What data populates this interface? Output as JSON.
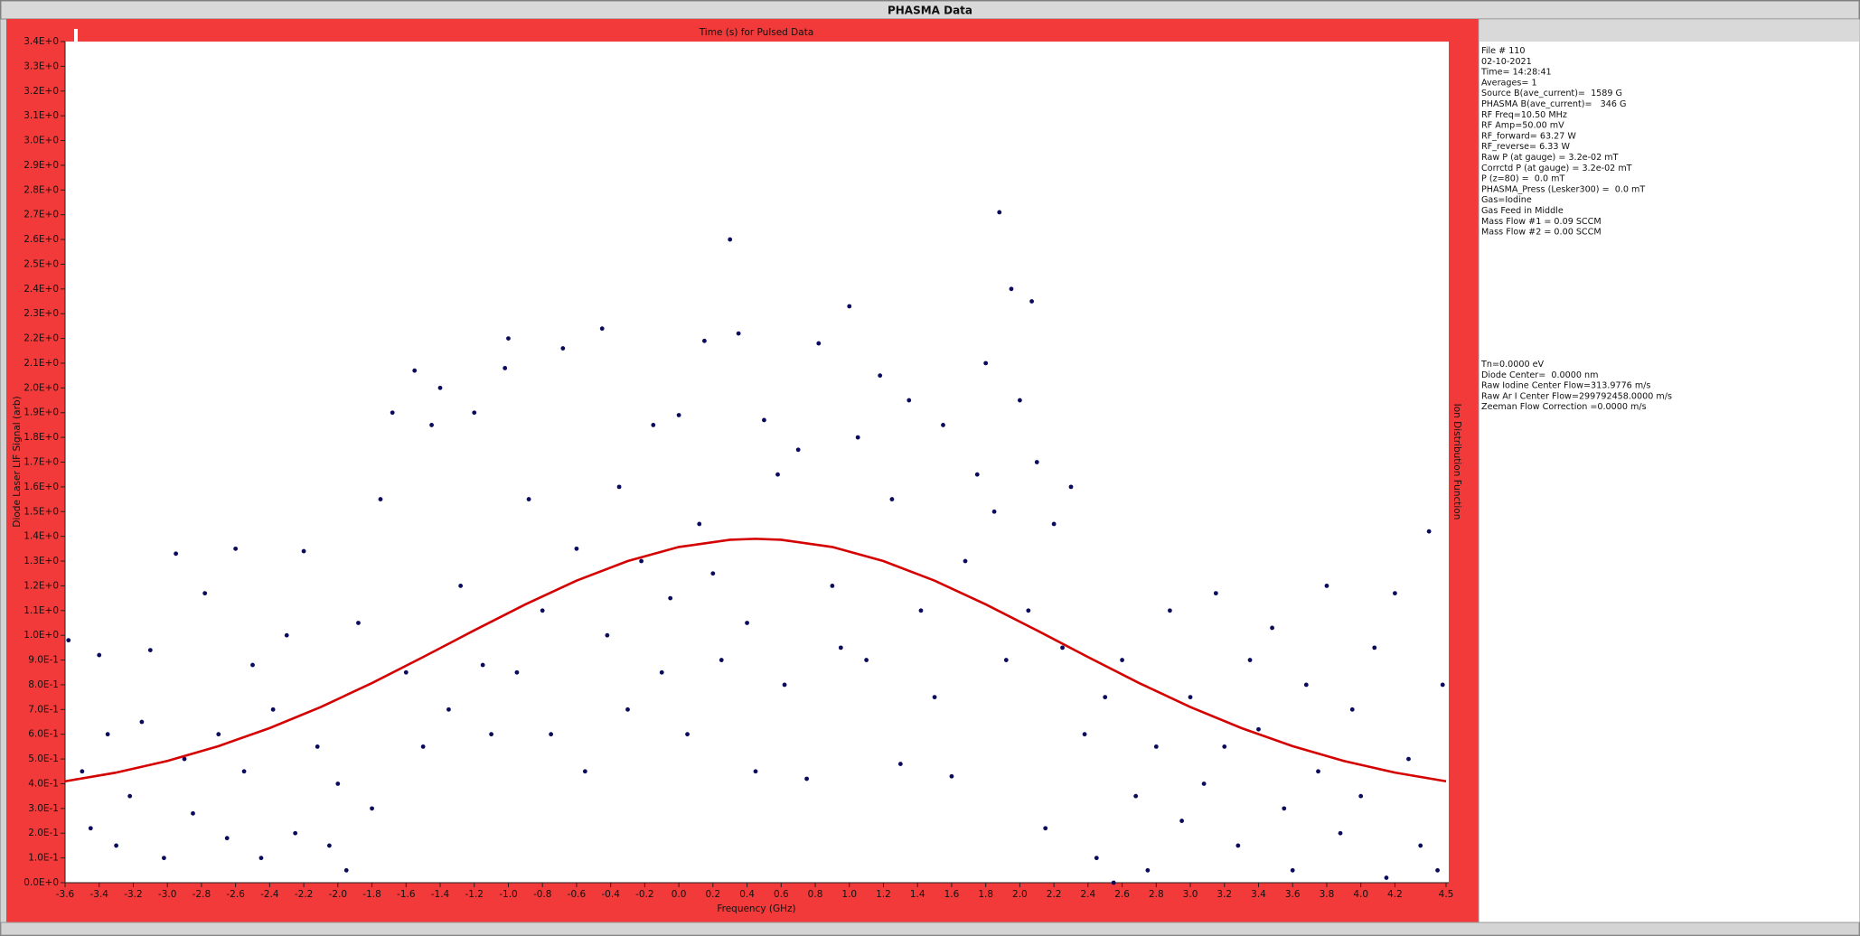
{
  "window_title": "PHASMA Data",
  "chart_data": {
    "type": "scatter",
    "title": "Time (s) for Pulsed Data",
    "x_label": "Frequency (GHz)",
    "y_label": "Diode Laser LIF Signal (arb)",
    "right_label": "Ion Distribution Function",
    "xlim": [
      -3.6,
      4.5
    ],
    "ylim": [
      0,
      3.4
    ],
    "xticks": [
      -3.6,
      -3.4,
      -3.2,
      {
        "value": -3,
        "label": "-3.0"
      },
      -2.8,
      -2.6,
      -2.4,
      -2.2,
      {
        "value": -2,
        "label": "-2.0"
      },
      -1.8,
      -1.6,
      -1.4,
      -1.2,
      {
        "value": -1,
        "label": "-1.0"
      },
      -0.8,
      -0.6,
      -0.4,
      -0.2,
      {
        "value": 0,
        "label": "0.0"
      },
      0.2,
      0.4,
      0.6,
      0.8,
      {
        "value": 1,
        "label": "1.0"
      },
      1.2,
      1.4,
      1.6,
      1.8,
      {
        "value": 2,
        "label": "2.0"
      },
      2.2,
      2.4,
      2.6,
      2.8,
      {
        "value": 3,
        "label": "3.0"
      },
      3.2,
      3.4,
      3.6,
      3.8,
      {
        "value": 4,
        "label": "4.0"
      },
      4.2,
      4.5
    ],
    "yticks": [
      {
        "value": 0,
        "label": "0.0E+0"
      },
      {
        "value": 0.1,
        "label": "1.0E-1"
      },
      {
        "value": 0.2,
        "label": "2.0E-1"
      },
      {
        "value": 0.3,
        "label": "3.0E-1"
      },
      {
        "value": 0.4,
        "label": "4.0E-1"
      },
      {
        "value": 0.5,
        "label": "5.0E-1"
      },
      {
        "value": 0.6,
        "label": "6.0E-1"
      },
      {
        "value": 0.7,
        "label": "7.0E-1"
      },
      {
        "value": 0.8,
        "label": "8.0E-1"
      },
      {
        "value": 0.9,
        "label": "9.0E-1"
      },
      {
        "value": 1.0,
        "label": "1.0E+0"
      },
      {
        "value": 1.1,
        "label": "1.1E+0"
      },
      {
        "value": 1.2,
        "label": "1.2E+0"
      },
      {
        "value": 1.3,
        "label": "1.3E+0"
      },
      {
        "value": 1.4,
        "label": "1.4E+0"
      },
      {
        "value": 1.5,
        "label": "1.5E+0"
      },
      {
        "value": 1.6,
        "label": "1.6E+0"
      },
      {
        "value": 1.7,
        "label": "1.7E+0"
      },
      {
        "value": 1.8,
        "label": "1.8E+0"
      },
      {
        "value": 1.9,
        "label": "1.9E+0"
      },
      {
        "value": 2.0,
        "label": "2.0E+0"
      },
      {
        "value": 2.1,
        "label": "2.1E+0"
      },
      {
        "value": 2.2,
        "label": "2.2E+0"
      },
      {
        "value": 2.3,
        "label": "2.3E+0"
      },
      {
        "value": 2.4,
        "label": "2.4E+0"
      },
      {
        "value": 2.5,
        "label": "2.5E+0"
      },
      {
        "value": 2.6,
        "label": "2.6E+0"
      },
      {
        "value": 2.7,
        "label": "2.7E+0"
      },
      {
        "value": 2.8,
        "label": "2.8E+0"
      },
      {
        "value": 2.9,
        "label": "2.9E+0"
      },
      {
        "value": 3.0,
        "label": "3.0E+0"
      },
      {
        "value": 3.1,
        "label": "3.1E+0"
      },
      {
        "value": 3.2,
        "label": "3.2E+0"
      },
      {
        "value": 3.3,
        "label": "3.3E+0"
      },
      {
        "value": 3.4,
        "label": "3.4E+0"
      }
    ],
    "points": {
      "color": "#0b0b5e",
      "x": [
        -3.58,
        -3.5,
        -3.45,
        -3.4,
        -3.35,
        -3.3,
        -3.22,
        -3.15,
        -3.1,
        -3.02,
        -2.95,
        -2.9,
        -2.85,
        -2.78,
        -2.7,
        -2.65,
        -2.6,
        -2.55,
        -2.5,
        -2.45,
        -2.38,
        -2.3,
        -2.25,
        -2.2,
        -2.12,
        -2.05,
        -2.0,
        -1.95,
        -1.88,
        -1.8,
        -1.75,
        -1.68,
        -1.6,
        -1.55,
        -1.5,
        -1.45,
        -1.4,
        -1.35,
        -1.28,
        -1.2,
        -1.15,
        -1.1,
        -1.02,
        -1.0,
        -0.95,
        -0.88,
        -0.8,
        -0.75,
        -0.68,
        -0.6,
        -0.55,
        -0.45,
        -0.42,
        -0.35,
        -0.3,
        -0.22,
        -0.15,
        -0.1,
        -0.05,
        0.0,
        0.05,
        0.12,
        0.15,
        0.2,
        0.25,
        0.3,
        0.35,
        0.4,
        0.45,
        0.5,
        0.58,
        0.62,
        0.7,
        0.75,
        0.82,
        0.9,
        0.95,
        1.0,
        1.05,
        1.1,
        1.18,
        1.25,
        1.3,
        1.35,
        1.42,
        1.5,
        1.55,
        1.6,
        1.68,
        1.75,
        1.8,
        1.85,
        1.88,
        1.92,
        1.95,
        2.0,
        2.05,
        2.07,
        2.1,
        2.15,
        2.2,
        2.25,
        2.3,
        2.38,
        2.45,
        2.5,
        2.55,
        2.6,
        2.68,
        2.75,
        2.8,
        2.88,
        2.95,
        3.0,
        3.08,
        3.15,
        3.2,
        3.28,
        3.35,
        3.4,
        3.48,
        3.55,
        3.6,
        3.68,
        3.75,
        3.8,
        3.88,
        3.95,
        4.0,
        4.08,
        4.15,
        4.2,
        4.28,
        4.35,
        4.4,
        4.45,
        4.48
      ],
      "y": [
        0.98,
        0.45,
        0.22,
        0.92,
        0.6,
        0.15,
        0.35,
        0.65,
        0.94,
        0.1,
        1.33,
        0.5,
        0.28,
        1.17,
        0.6,
        0.18,
        1.35,
        0.45,
        0.88,
        0.1,
        0.7,
        1.0,
        0.2,
        1.34,
        0.55,
        0.15,
        0.4,
        0.05,
        1.05,
        0.3,
        1.55,
        1.9,
        0.85,
        2.07,
        0.55,
        1.85,
        2.0,
        0.7,
        1.2,
        1.9,
        0.88,
        0.6,
        2.08,
        2.2,
        0.85,
        1.55,
        1.1,
        0.6,
        2.16,
        1.35,
        0.45,
        2.24,
        1.0,
        1.6,
        0.7,
        1.3,
        1.85,
        0.85,
        1.15,
        1.89,
        0.6,
        1.45,
        2.19,
        1.25,
        0.9,
        2.6,
        2.22,
        1.05,
        0.45,
        1.87,
        1.65,
        0.8,
        1.75,
        0.42,
        2.18,
        1.2,
        0.95,
        2.33,
        1.8,
        0.9,
        2.05,
        1.55,
        0.48,
        1.95,
        1.1,
        0.75,
        1.85,
        0.43,
        1.3,
        1.65,
        2.1,
        1.5,
        2.71,
        0.9,
        2.4,
        1.95,
        1.1,
        2.35,
        1.7,
        0.22,
        1.45,
        0.95,
        1.6,
        0.6,
        0.1,
        0.75,
        0.0,
        0.9,
        0.35,
        0.05,
        0.55,
        1.1,
        0.25,
        0.75,
        0.4,
        1.17,
        0.55,
        0.15,
        0.9,
        0.62,
        1.03,
        0.3,
        0.05,
        0.8,
        0.45,
        1.2,
        0.2,
        0.7,
        0.35,
        0.95,
        0.02,
        1.17,
        0.5,
        0.15,
        1.42,
        0.05,
        0.8
      ]
    },
    "fit": {
      "color": "#d40000",
      "x": [
        -3.6,
        -3.3,
        -3.0,
        -2.7,
        -2.4,
        -2.1,
        -1.8,
        -1.5,
        -1.2,
        -0.9,
        -0.6,
        -0.3,
        0.0,
        0.3,
        0.45,
        0.6,
        0.9,
        1.2,
        1.5,
        1.8,
        2.1,
        2.4,
        2.7,
        3.0,
        3.3,
        3.6,
        3.9,
        4.2,
        4.5
      ],
      "y": [
        0.41,
        0.445,
        0.492,
        0.552,
        0.625,
        0.71,
        0.807,
        0.912,
        1.02,
        1.125,
        1.221,
        1.3,
        1.357,
        1.386,
        1.39,
        1.386,
        1.357,
        1.3,
        1.221,
        1.125,
        1.02,
        0.912,
        0.807,
        0.71,
        0.625,
        0.552,
        0.492,
        0.445,
        0.41
      ]
    }
  },
  "info": {
    "header": [
      "File # 110",
      "02-10-2021",
      "Time= 14:28:41",
      "Averages= 1",
      "Source B(ave_current)=  1589 G",
      "PHASMA B(ave_current)=   346 G",
      "RF Freq=10.50 MHz",
      "RF Amp=50.00 mV",
      "RF_forward= 63.27 W",
      "RF_reverse= 6.33 W",
      "Raw P (at gauge) = 3.2e-02 mT",
      "Corrctd P (at gauge) = 3.2e-02 mT",
      "P (z=80) =  0.0 mT",
      "PHASMA_Press (Lesker300) =  0.0 mT",
      "Gas=Iodine",
      "Gas Feed in Middle",
      "Mass Flow #1 = 0.09 SCCM",
      "Mass Flow #2 = 0.00 SCCM"
    ],
    "results": [
      "Tn=0.0000 eV",
      "Diode Center=  0.0000 nm",
      "Raw Iodine Center Flow=313.9776 m/s",
      "Raw Ar I Center Flow=299792458.0000 m/s",
      "Zeeman Flow Correction =0.0000 m/s"
    ]
  }
}
